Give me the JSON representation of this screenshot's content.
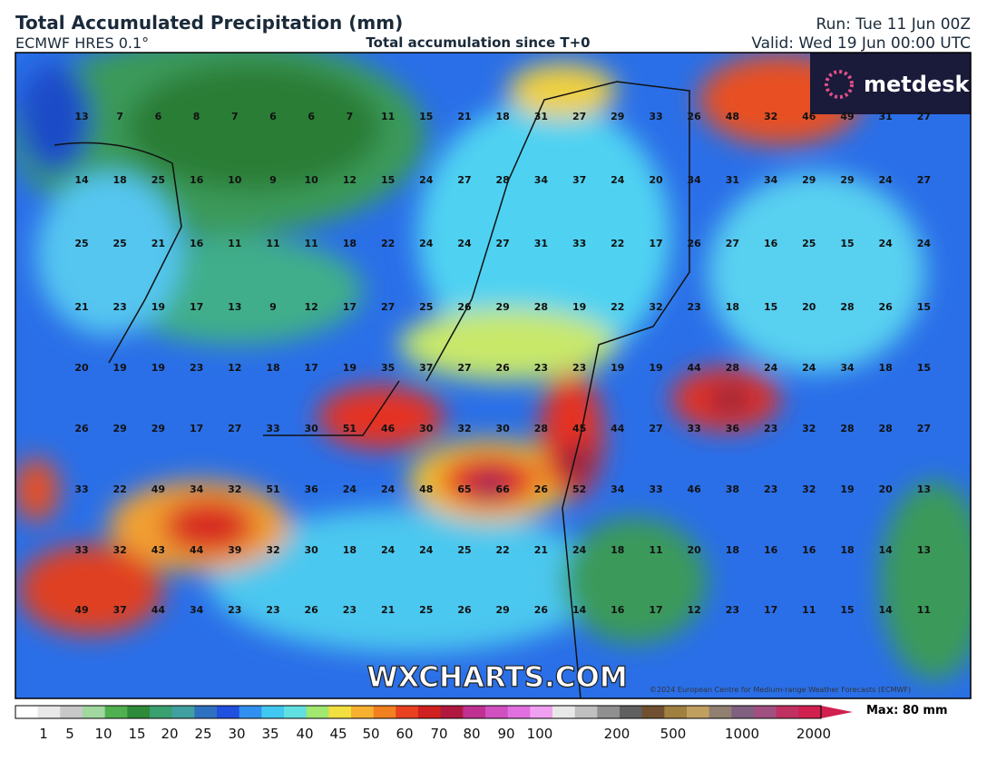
{
  "header": {
    "title": "Total Accumulated Precipitation (mm)",
    "model": "ECMWF HRES 0.1°",
    "subtitle": "Total accumulation since T+0",
    "run": "Run: Tue 11 Jun 00Z",
    "valid": "Valid: Wed 19 Jun 00:00 UTC"
  },
  "logo": "metdesk",
  "watermark": "WXCHARTS.COM",
  "copyright": "©2024 European Centre for Medium-range Weather Forecasts (ECMWF)",
  "grid": {
    "rows": [
      [
        13,
        7,
        6,
        8,
        7,
        6,
        6,
        7,
        11,
        15,
        21,
        18,
        31,
        27,
        29,
        33,
        26,
        48,
        32,
        46,
        49,
        31,
        27
      ],
      [
        14,
        18,
        25,
        16,
        10,
        9,
        10,
        12,
        15,
        24,
        27,
        28,
        34,
        37,
        24,
        20,
        34,
        31,
        34,
        29,
        29,
        24,
        27
      ],
      [
        25,
        25,
        21,
        16,
        11,
        11,
        11,
        18,
        22,
        24,
        24,
        27,
        31,
        33,
        22,
        17,
        26,
        27,
        16,
        25,
        15,
        24,
        24
      ],
      [
        21,
        23,
        19,
        17,
        13,
        9,
        12,
        17,
        27,
        25,
        26,
        29,
        28,
        19,
        22,
        32,
        23,
        18,
        15,
        20,
        28,
        26,
        15
      ],
      [
        20,
        19,
        19,
        23,
        12,
        18,
        17,
        19,
        35,
        37,
        27,
        26,
        23,
        23,
        19,
        19,
        44,
        28,
        24,
        24,
        34,
        18,
        15
      ],
      [
        26,
        29,
        29,
        17,
        27,
        33,
        30,
        51,
        46,
        30,
        32,
        30,
        28,
        45,
        44,
        27,
        33,
        36,
        23,
        32,
        28,
        28,
        27
      ],
      [
        33,
        22,
        49,
        34,
        32,
        51,
        36,
        24,
        24,
        48,
        65,
        66,
        26,
        52,
        34,
        33,
        46,
        38,
        23,
        32,
        19,
        20,
        13
      ],
      [
        33,
        32,
        43,
        44,
        39,
        32,
        30,
        18,
        24,
        24,
        25,
        22,
        21,
        24,
        18,
        11,
        20,
        18,
        16,
        16,
        18,
        14,
        13
      ],
      [
        49,
        37,
        44,
        34,
        23,
        23,
        26,
        23,
        21,
        25,
        26,
        29,
        26,
        14,
        16,
        17,
        12,
        23,
        17,
        11,
        15,
        14,
        11
      ]
    ]
  },
  "colorbar": {
    "ticks": [
      1,
      5,
      10,
      15,
      20,
      25,
      30,
      35,
      40,
      45,
      50,
      60,
      70,
      80,
      90,
      100,
      200,
      500,
      1000,
      2000
    ],
    "max": "Max: 80 mm"
  }
}
